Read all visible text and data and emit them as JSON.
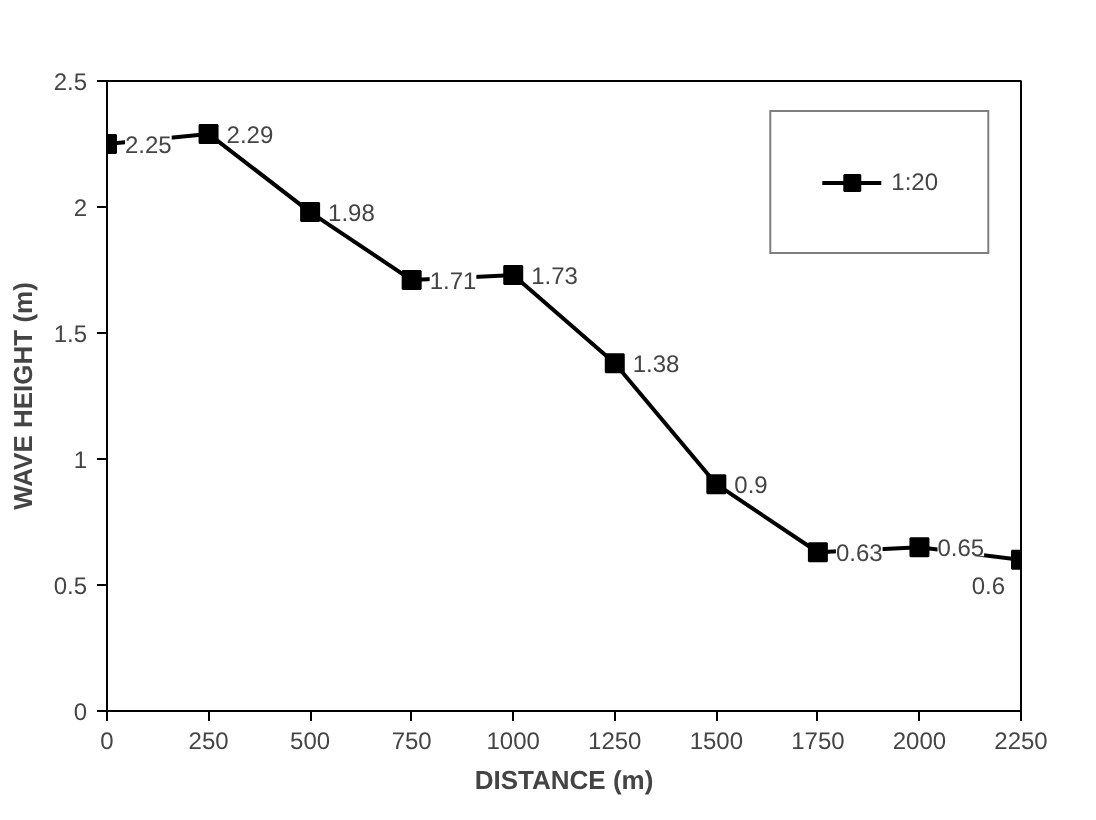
{
  "chart_data": {
    "type": "line",
    "xlabel": "DISTANCE (m)",
    "ylabel": "WAVE HEIGHT (m)",
    "x": [
      0,
      250,
      500,
      750,
      1000,
      1250,
      1500,
      1750,
      2000,
      2250
    ],
    "series": [
      {
        "name": "1:20",
        "color": "#000000",
        "values": [
          2.25,
          2.29,
          1.98,
          1.71,
          1.73,
          1.38,
          0.9,
          0.63,
          0.65,
          0.6
        ]
      }
    ],
    "xlim": [
      0,
      2250
    ],
    "xticks": [
      0,
      250,
      500,
      750,
      1000,
      1250,
      1500,
      1750,
      2000,
      2250
    ],
    "ylim": [
      0,
      2.5
    ],
    "yticks": [
      0,
      0.5,
      1,
      1.5,
      2,
      2.5
    ],
    "marker": "square",
    "line_style": "solid",
    "legend": "top right",
    "data_labels": true,
    "grid": false
  }
}
